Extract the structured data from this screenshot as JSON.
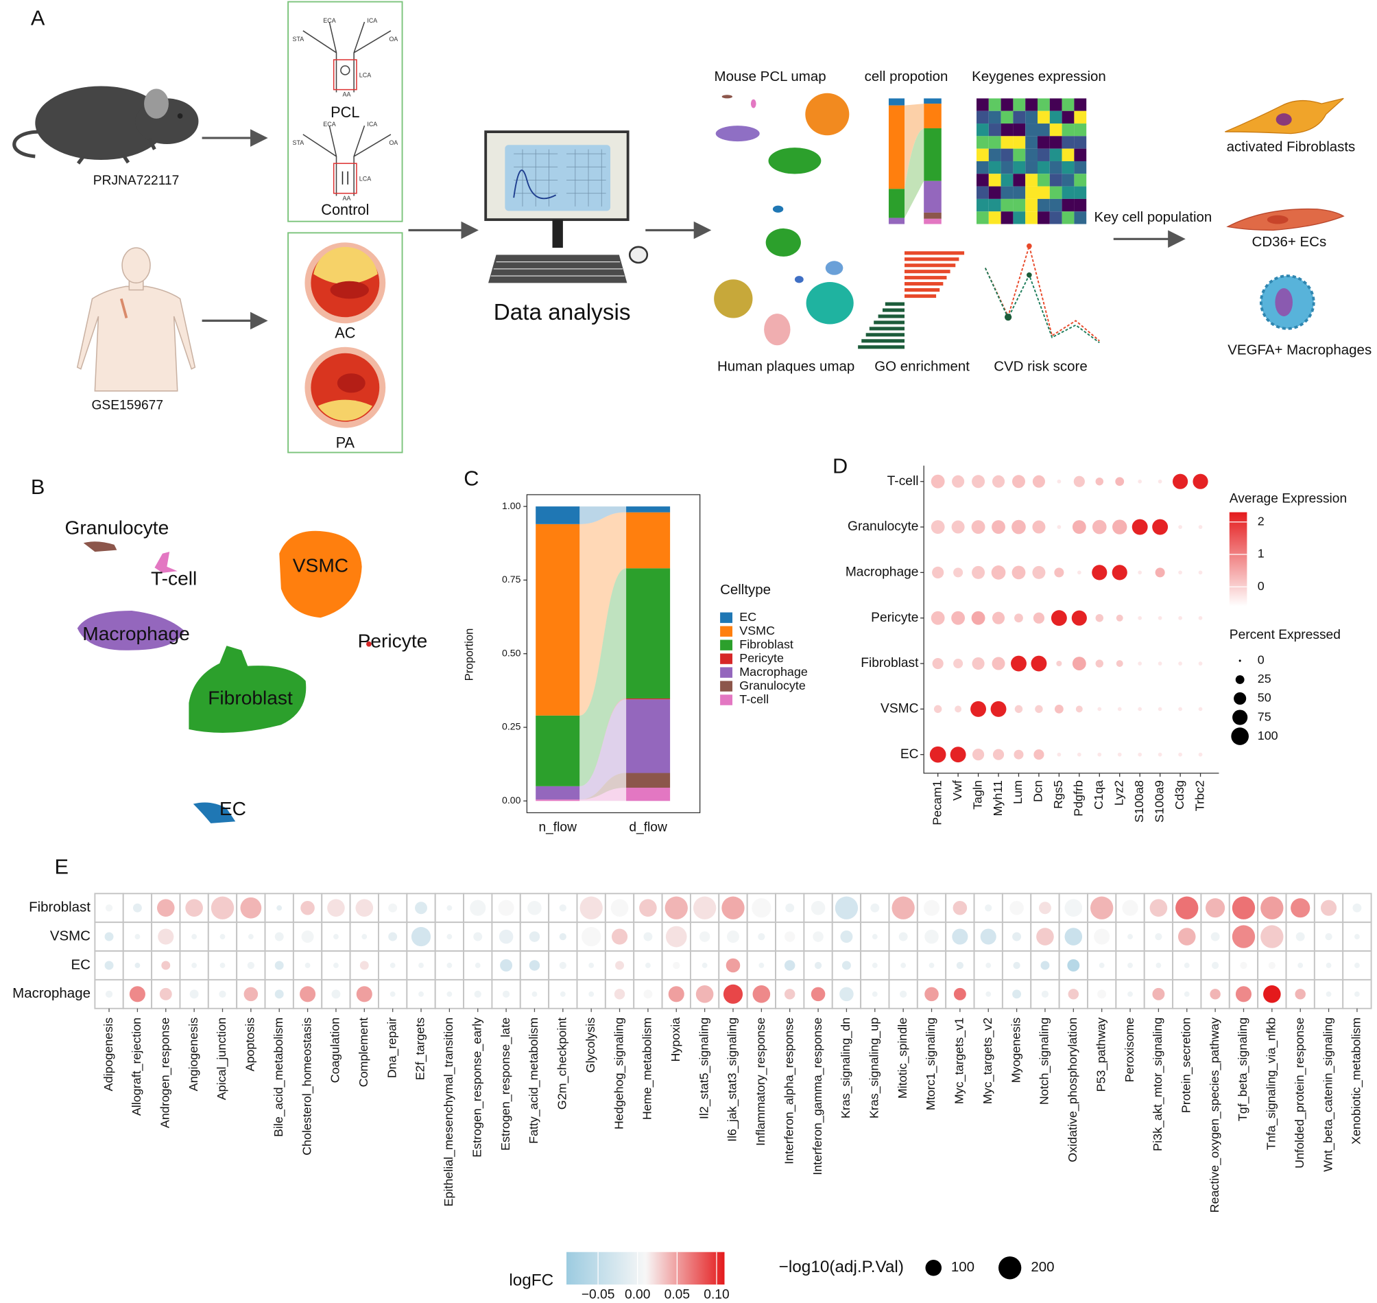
{
  "panel_labels": [
    "A",
    "B",
    "C",
    "D",
    "E"
  ],
  "panel_a": {
    "datasets": [
      "PRJNA722117",
      "GSE159677"
    ],
    "mouse_groups": [
      "PCL",
      "Control"
    ],
    "vessel_labels": [
      "ECA",
      "ICA",
      "STA",
      "OA",
      "LCA",
      "AA"
    ],
    "human_groups": [
      "AC",
      "PA"
    ],
    "analysis": "Data analysis",
    "outputs": [
      "Mouse PCL umap",
      "cell propotion",
      "Keygenes expression",
      "Human plaques umap",
      "GO enrichment",
      "CVD risk score"
    ],
    "key_label": "Key cell population",
    "key_cells": [
      "activated Fibroblasts",
      "CD36+ ECs",
      "VEGFA+ Macrophages"
    ]
  },
  "panel_b": {
    "cluster_labels": [
      "Granulocyte",
      "T-cell",
      "VSMC",
      "Macrophage",
      "Pericyte",
      "Fibroblast",
      "EC"
    ]
  },
  "chart_data": [
    {
      "type": "alluvial",
      "ylabel": "Proportion",
      "legend_title": "Celltype",
      "categories": [
        "n_flow",
        "d_flow"
      ],
      "series": [
        {
          "name": "EC",
          "color": "#1f77b4",
          "values": [
            0.06,
            0.02
          ]
        },
        {
          "name": "VSMC",
          "color": "#ff7f0e",
          "values": [
            0.65,
            0.19
          ]
        },
        {
          "name": "Fibroblast",
          "color": "#2ca02c",
          "values": [
            0.24,
            0.442
          ]
        },
        {
          "name": "Pericyte",
          "color": "#d62728",
          "values": [
            0.0,
            0.003
          ]
        },
        {
          "name": "Macrophage",
          "color": "#9467bd",
          "values": [
            0.045,
            0.25
          ]
        },
        {
          "name": "Granulocyte",
          "color": "#8c564b",
          "values": [
            0.0,
            0.05
          ]
        },
        {
          "name": "T-cell",
          "color": "#e377c2",
          "values": [
            0.005,
            0.045
          ]
        }
      ],
      "ylim": [
        -0.04,
        1.04
      ],
      "yticks": [
        {
          "value": 0,
          "label": "0.00"
        },
        {
          "value": 0.25,
          "label": "0.25"
        },
        {
          "value": 0.5,
          "label": "0.50"
        },
        {
          "value": 0.75,
          "label": "0.75"
        },
        {
          "value": 1,
          "label": "1.00"
        }
      ]
    },
    {
      "type": "dot",
      "categories": [
        "Pecam1",
        "Vwf",
        "Tagln",
        "Myh11",
        "Lum",
        "Dcn",
        "Rgs5",
        "Pdgfrb",
        "C1qa",
        "Lyz2",
        "S100a8",
        "S100a9",
        "Cd3g",
        "Trbc2"
      ],
      "series": [
        {
          "name": "T-cell",
          "values": [
            0.2,
            0.1,
            0.1,
            0.1,
            0.2,
            0.2,
            -0.3,
            0.1,
            0.2,
            0.3,
            -0.3,
            -0.3,
            2.2,
            2.2
          ],
          "sizes": [
            60,
            50,
            55,
            50,
            55,
            50,
            5,
            40,
            20,
            25,
            5,
            5,
            75,
            75
          ]
        },
        {
          "name": "Granulocyte",
          "values": [
            0.1,
            0.1,
            0.2,
            0.3,
            0.3,
            0.2,
            -0.3,
            0.4,
            0.3,
            0.4,
            2.2,
            2.2,
            -0.3,
            -0.3
          ],
          "sizes": [
            60,
            55,
            60,
            60,
            65,
            55,
            5,
            60,
            65,
            70,
            80,
            80,
            5,
            5
          ]
        },
        {
          "name": "Macrophage",
          "values": [
            0.1,
            0,
            0.1,
            0.2,
            0.2,
            0.1,
            0.2,
            -0.3,
            2.2,
            2.2,
            -0.3,
            0.4,
            -0.3,
            -0.3
          ],
          "sizes": [
            45,
            30,
            55,
            65,
            60,
            55,
            30,
            5,
            75,
            75,
            5,
            30,
            5,
            5
          ]
        },
        {
          "name": "Pericyte",
          "values": [
            0.2,
            0.3,
            0.5,
            0.2,
            0.1,
            0.2,
            2.2,
            2.2,
            0.1,
            0.1,
            -0.3,
            -0.3,
            -0.3,
            -0.3
          ],
          "sizes": [
            60,
            60,
            60,
            50,
            25,
            40,
            80,
            75,
            20,
            15,
            5,
            5,
            5,
            5
          ]
        },
        {
          "name": "Fibroblast",
          "values": [
            0.1,
            0,
            0.1,
            0.2,
            2.2,
            2.2,
            0,
            0.5,
            0.1,
            0.1,
            -0.3,
            -0.3,
            -0.3,
            -0.3
          ],
          "sizes": [
            40,
            30,
            50,
            55,
            80,
            80,
            10,
            60,
            20,
            15,
            5,
            5,
            5,
            5
          ]
        },
        {
          "name": "VSMC",
          "values": [
            0,
            -0.1,
            2.2,
            2.2,
            0,
            0,
            0.2,
            0,
            -0.3,
            -0.3,
            -0.3,
            -0.3,
            -0.3,
            -0.3
          ],
          "sizes": [
            20,
            15,
            80,
            80,
            20,
            20,
            25,
            15,
            5,
            5,
            5,
            5,
            5,
            5
          ]
        },
        {
          "name": "EC",
          "values": [
            2.2,
            2.2,
            0.1,
            0.1,
            0.1,
            0.2,
            -0.3,
            -0.3,
            -0.3,
            -0.3,
            -0.3,
            -0.3,
            -0.3,
            -0.3
          ],
          "sizes": [
            85,
            80,
            45,
            40,
            30,
            35,
            5,
            5,
            5,
            5,
            5,
            5,
            5,
            5
          ]
        }
      ],
      "color_title": "Average Expression",
      "colors": [
        "#ffffff",
        "#e41a1c"
      ],
      "colorlim": [
        -0.6,
        2.3
      ],
      "color_ticks": [
        0,
        1,
        2
      ],
      "size_title": "Percent Expressed",
      "size_lim": [
        0,
        100
      ],
      "size_ticks": [
        0,
        25,
        50,
        75,
        100
      ]
    },
    {
      "type": "dot",
      "categories": [
        "Adipogenesis",
        "Allograft_rejection",
        "Androgen_response",
        "Angiogenesis",
        "Apical_junction",
        "Apoptosis",
        "Bile_acid_metabolism",
        "Cholesterol_homeostasis",
        "Coagulation",
        "Complement",
        "Dna_repair",
        "E2f_targets",
        "Epithelial_mesenchymal_transition",
        "Estrogen_response_early",
        "Estrogen_response_late",
        "Fatty_acid_metabolism",
        "G2m_checkpoint",
        "Glycolysis",
        "Hedgehog_signaling",
        "Heme_metabolism",
        "Hypoxia",
        "Il2_stat5_signaling",
        "Il6_jak_stat3_signaling",
        "Inflammatory_response",
        "Interferon_alpha_response",
        "Interferon_gamma_response",
        "Kras_signaling_dn",
        "Kras_signaling_up",
        "Mitotic_spindle",
        "Mtorc1_signaling",
        "Myc_targets_v1",
        "Myc_targets_v2",
        "Myogenesis",
        "Notch_signaling",
        "Oxidative_phosphorylation",
        "P53_pathway",
        "Peroxisome",
        "Pi3k_akt_mtor_signaling",
        "Protein_secretion",
        "Reactive_oxygen_species_pathway",
        "Tgf_beta_signaling",
        "Tnfa_signaling_via_nfkb",
        "Unfolded_protein_response",
        "Wnt_beta_catenin_signaling",
        "Xenobiotic_metabolism"
      ],
      "series": [
        {
          "name": "Fibroblast",
          "values": [
            0.005,
            -0.01,
            0.04,
            0.03,
            0.03,
            0.04,
            -0.01,
            0.03,
            0.02,
            0.02,
            0.005,
            -0.02,
            0,
            0.005,
            0.01,
            0.005,
            0,
            0.02,
            0.01,
            0.03,
            0.04,
            0.02,
            0.045,
            0.01,
            0,
            0.005,
            -0.03,
            0,
            0.04,
            0.01,
            0.03,
            0,
            0.01,
            0.02,
            0.005,
            0.04,
            0.01,
            0.03,
            0.07,
            0.04,
            0.07,
            0.05,
            0.06,
            0.03,
            0
          ],
          "sizes": [
            19,
            30,
            118,
            118,
            200,
            170,
            11,
            76,
            118,
            118,
            30,
            58,
            11,
            96,
            96,
            76,
            19,
            200,
            118,
            118,
            200,
            200,
            200,
            143,
            30,
            76,
            200,
            30,
            200,
            96,
            76,
            19,
            76,
            58,
            118,
            200,
            96,
            118,
            200,
            143,
            200,
            200,
            143,
            96,
            30
          ]
        },
        {
          "name": "VSMC",
          "values": [
            -0.02,
            0,
            0.02,
            0,
            0,
            0,
            0,
            0.005,
            0,
            0,
            -0.01,
            -0.03,
            0,
            0,
            -0.005,
            -0.01,
            -0.01,
            0.01,
            0.03,
            0,
            0.02,
            0.005,
            0.005,
            0,
            0.01,
            0.005,
            -0.02,
            0,
            0,
            0.005,
            -0.03,
            -0.03,
            -0.01,
            0.03,
            -0.04,
            0.01,
            0,
            0,
            0.04,
            0,
            0.06,
            0.03,
            0,
            0,
            0
          ],
          "sizes": [
            30,
            11,
            96,
            11,
            11,
            11,
            30,
            58,
            11,
            11,
            30,
            143,
            11,
            30,
            76,
            43,
            19,
            143,
            96,
            30,
            170,
            43,
            58,
            19,
            43,
            43,
            58,
            11,
            30,
            76,
            96,
            96,
            30,
            118,
            118,
            96,
            11,
            19,
            118,
            30,
            200,
            200,
            30,
            19,
            11
          ]
        },
        {
          "name": "EC",
          "values": [
            -0.02,
            -0.01,
            0.03,
            0,
            0,
            0,
            -0.02,
            0,
            0,
            0.02,
            0,
            0,
            0,
            0,
            -0.03,
            -0.03,
            0,
            0,
            0.02,
            0,
            0.01,
            0,
            0.05,
            0,
            -0.03,
            -0.01,
            -0.02,
            0,
            0,
            0,
            -0.01,
            0,
            -0.01,
            -0.03,
            -0.06,
            0,
            0,
            0,
            0,
            0,
            0.01,
            0.01,
            0,
            0,
            0
          ],
          "sizes": [
            30,
            11,
            30,
            11,
            11,
            19,
            30,
            11,
            11,
            30,
            11,
            11,
            11,
            11,
            58,
            43,
            19,
            11,
            30,
            11,
            19,
            11,
            76,
            11,
            43,
            19,
            30,
            11,
            11,
            11,
            19,
            11,
            19,
            30,
            58,
            11,
            11,
            11,
            11,
            19,
            19,
            19,
            11,
            11,
            11
          ]
        },
        {
          "name": "Macrophage",
          "values": [
            0,
            0.06,
            0.03,
            0,
            0,
            0.04,
            -0.02,
            0.05,
            0,
            0.05,
            0,
            0,
            0,
            0,
            0,
            0,
            0,
            0,
            0.02,
            0.01,
            0.05,
            0.04,
            0.09,
            0.06,
            0.03,
            0.06,
            -0.02,
            0,
            0,
            0.05,
            0.07,
            0,
            -0.02,
            0,
            0.03,
            0.01,
            0,
            0.04,
            0,
            0.04,
            0.06,
            0.11,
            0.04,
            0,
            0
          ],
          "sizes": [
            19,
            96,
            58,
            30,
            19,
            76,
            30,
            96,
            30,
            96,
            11,
            11,
            11,
            19,
            19,
            11,
            11,
            11,
            43,
            30,
            96,
            118,
            143,
            118,
            43,
            76,
            76,
            11,
            19,
            76,
            58,
            11,
            30,
            19,
            43,
            30,
            11,
            58,
            11,
            43,
            96,
            118,
            43,
            11,
            11
          ]
        }
      ],
      "color_title": "logFC",
      "colors": [
        "#9ccbe0",
        "#f7f7f7",
        "#e41a1c"
      ],
      "colorlim": [
        -0.09,
        0.11
      ],
      "color_ticks": [
        {
          "value": -0.05,
          "label": "−0.05"
        },
        {
          "value": 0,
          "label": "0.00"
        },
        {
          "value": 0.05,
          "label": "0.05"
        },
        {
          "value": 0.1,
          "label": "0.10"
        }
      ],
      "size_title": "−log10(adj.P.Val)",
      "size_ticks": [
        100,
        200
      ]
    }
  ]
}
